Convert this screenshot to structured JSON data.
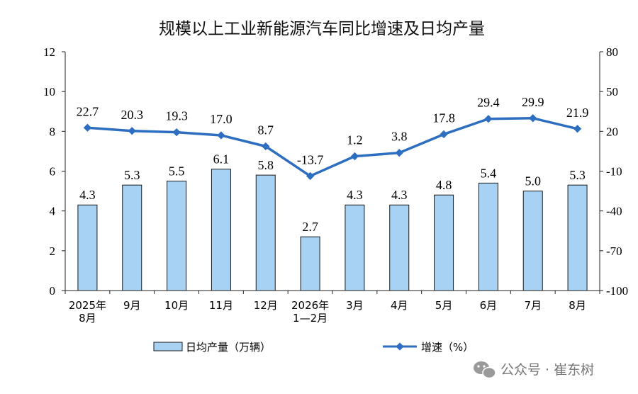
{
  "chart_data": {
    "type": "bar",
    "title": "规模以上工业新能源汽车同比增速及日均产量",
    "categories": [
      [
        "2025年",
        "8月"
      ],
      [
        "9月"
      ],
      [
        "10月"
      ],
      [
        "11月"
      ],
      [
        "12月"
      ],
      [
        "2026年",
        "1—2月"
      ],
      [
        "3月"
      ],
      [
        "4月"
      ],
      [
        "5月"
      ],
      [
        "6月"
      ],
      [
        "7月"
      ],
      [
        "8月"
      ]
    ],
    "y_left": {
      "min": 0,
      "max": 12,
      "ticks": [
        "0",
        "2",
        "4",
        "6",
        "8",
        "10",
        "12"
      ]
    },
    "y_right": {
      "min": -100,
      "max": 80,
      "ticks": [
        "-100",
        "-70",
        "-40",
        "-10",
        "20",
        "50",
        "80"
      ]
    },
    "series": [
      {
        "name": "日均产量（万辆）",
        "type": "bar",
        "axis": "left",
        "values": [
          4.3,
          5.3,
          5.5,
          6.1,
          5.8,
          2.7,
          4.3,
          4.3,
          4.8,
          5.4,
          5.0,
          5.3
        ],
        "labels": [
          "4.3",
          "5.3",
          "5.5",
          "6.1",
          "5.8",
          "2.7",
          "4.3",
          "4.3",
          "4.8",
          "5.4",
          "5.0",
          "5.3"
        ]
      },
      {
        "name": "增速（%）",
        "type": "line",
        "axis": "right",
        "values": [
          22.7,
          20.3,
          19.3,
          17.0,
          8.7,
          -13.7,
          1.2,
          3.8,
          17.8,
          29.4,
          29.9,
          21.9
        ],
        "labels": [
          "22.7",
          "20.3",
          "19.3",
          "17.0",
          "8.7",
          "-13.7",
          "1.2",
          "3.8",
          "17.8",
          "29.4",
          "29.9",
          "21.9"
        ]
      }
    ],
    "legend_position": "bottom",
    "colors": {
      "bar_fill": "#a8d2f4",
      "bar_stroke": "#1a1a1a",
      "line": "#2e6ec0"
    }
  },
  "watermark": {
    "text": "公众号 · 崔东树",
    "icon": "wechat-icon"
  }
}
